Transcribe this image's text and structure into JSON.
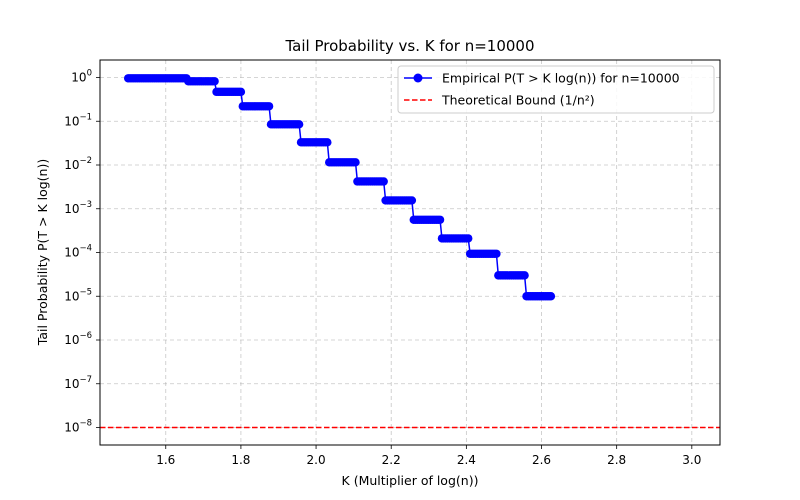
{
  "chart_data": {
    "type": "line",
    "title": "Tail Probability vs. K for n=10000",
    "xlabel": "K (Multiplier of log(n))",
    "ylabel": "Tail Probability P(T > K log(n))",
    "xlim": [
      1.425,
      3.075
    ],
    "yscale": "log",
    "ylim_log10": [
      -8.4,
      0.4
    ],
    "grid": true,
    "legend_position": "top-right",
    "x_ticks": [
      1.6,
      1.8,
      2.0,
      2.2,
      2.4,
      2.6,
      2.8,
      3.0
    ],
    "x_tick_labels": [
      "1.6",
      "1.8",
      "2.0",
      "2.2",
      "2.4",
      "2.6",
      "2.8",
      "3.0"
    ],
    "y_ticks_log10": [
      0,
      -1,
      -2,
      -3,
      -4,
      -5,
      -6,
      -7,
      -8
    ],
    "y_tick_bases": [
      "10",
      "10",
      "10",
      "10",
      "10",
      "10",
      "10",
      "10",
      "10"
    ],
    "y_tick_exponents": [
      "0",
      "−1",
      "−2",
      "−3",
      "−4",
      "−5",
      "−6",
      "−7",
      "−8"
    ],
    "series": [
      {
        "name": "Empirical P(T > K log(n)) for n=10000",
        "color": "#0000ff",
        "marker": "circle",
        "x_start": 1.5,
        "x_step": 0.005,
        "count": 226,
        "steps": [
          {
            "x_from": 1.5,
            "x_to": 1.655,
            "value": 0.96
          },
          {
            "x_from": 1.66,
            "x_to": 1.73,
            "value": 0.82
          },
          {
            "x_from": 1.735,
            "x_to": 1.8,
            "value": 0.47
          },
          {
            "x_from": 1.805,
            "x_to": 1.875,
            "value": 0.22
          },
          {
            "x_from": 1.88,
            "x_to": 1.955,
            "value": 0.085
          },
          {
            "x_from": 1.96,
            "x_to": 2.03,
            "value": 0.033
          },
          {
            "x_from": 2.035,
            "x_to": 2.105,
            "value": 0.0115
          },
          {
            "x_from": 2.11,
            "x_to": 2.18,
            "value": 0.0042
          },
          {
            "x_from": 2.185,
            "x_to": 2.255,
            "value": 0.00155
          },
          {
            "x_from": 2.26,
            "x_to": 2.33,
            "value": 0.00056
          },
          {
            "x_from": 2.335,
            "x_to": 2.405,
            "value": 0.00021
          },
          {
            "x_from": 2.41,
            "x_to": 2.48,
            "value": 9.35e-05
          },
          {
            "x_from": 2.485,
            "x_to": 2.555,
            "value": 3e-05
          },
          {
            "x_from": 2.56,
            "x_to": 2.625,
            "value": 1e-05
          },
          {
            "x_from": 2.63,
            "x_to": 2.625,
            "value": 0
          }
        ],
        "drop_to_zero_at": 2.63
      },
      {
        "name": "Theoretical Bound (1/n²)",
        "color": "#ff0000",
        "style": "dashed",
        "value": 1e-08
      }
    ]
  }
}
